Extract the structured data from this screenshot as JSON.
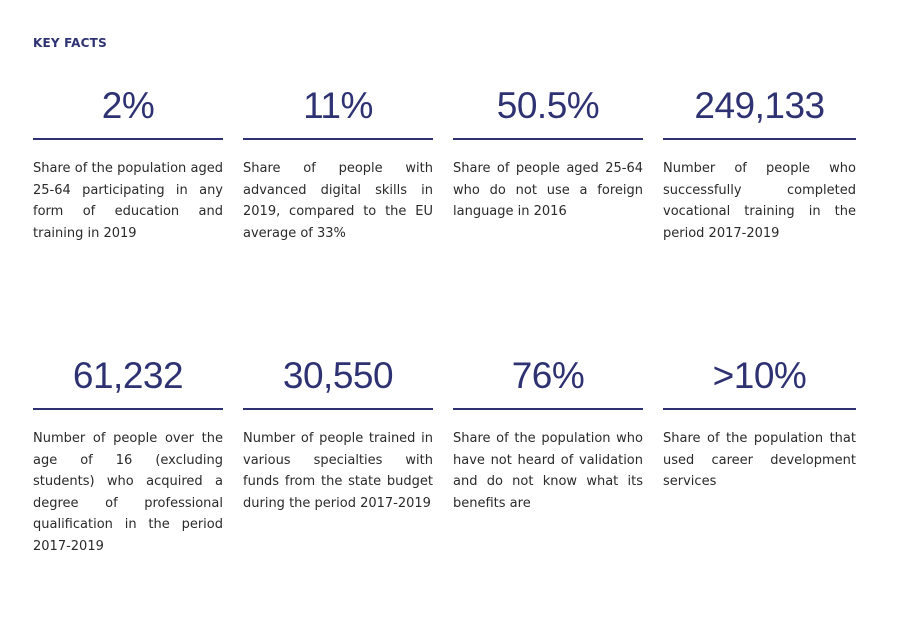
{
  "header": {
    "title": "KEY FACTS"
  },
  "facts": [
    {
      "value": "2%",
      "description": "Share of the population aged 25-64 participating in any form of education and training in 2019"
    },
    {
      "value": "11%",
      "description": "Share of people with advanced digital skills in 2019, compared to the EU average of 33%"
    },
    {
      "value": "50.5%",
      "description": "Share of people aged 25-64 who do not use a foreign language in 2016"
    },
    {
      "value": "249,133",
      "description": "Number of people who successfully completed vocational training in the period 2017-2019"
    },
    {
      "value": "61,232",
      "description": "Number of people over the age of 16 (excluding students) who acquired a degree of professional qualification in the period 2017-2019"
    },
    {
      "value": "30,550",
      "description": "Number of people trained in various specialties with funds from the state budget during the period 2017-2019"
    },
    {
      "value": "76%",
      "description": "Share of the population who have not heard of validation and do not know what its benefits are"
    },
    {
      "value": ">10%",
      "description": "Share of the population that used career development services"
    }
  ]
}
